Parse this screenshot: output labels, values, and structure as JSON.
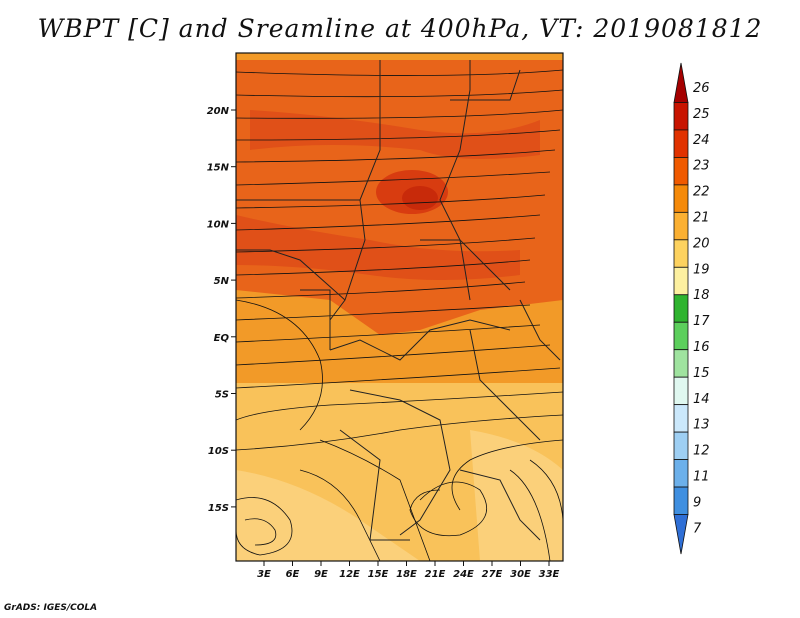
{
  "title": "WBPT [C] and Sreamline at 400hPa, VT: 2019081812",
  "credit": "GrADS: IGES/COLA",
  "map": {
    "lon_labels": [
      "3E",
      "6E",
      "9E",
      "12E",
      "15E",
      "18E",
      "21E",
      "24E",
      "27E",
      "30E",
      "33E"
    ],
    "lat_labels": [
      "20N",
      "15N",
      "10N",
      "5N",
      "EQ",
      "5S",
      "10S",
      "15S"
    ]
  },
  "colorbar": {
    "labels": [
      "26",
      "25",
      "24",
      "23",
      "22",
      "21",
      "20",
      "19",
      "18",
      "17",
      "16",
      "15",
      "14",
      "13",
      "12",
      "11",
      "9",
      "7"
    ],
    "colors": [
      "#a50000",
      "#c81400",
      "#e13200",
      "#f05a00",
      "#f58a0a",
      "#fbb032",
      "#fdd25f",
      "#fdf0a0",
      "#2fb42f",
      "#5ccf5c",
      "#9fe39f",
      "#e0f8f0",
      "#cbe8fb",
      "#9ecff3",
      "#6cb0ea",
      "#3f8fe0",
      "#2f6fd6"
    ]
  },
  "colors": {
    "field_north": "#e8641a",
    "field_core": "#d83c10",
    "field_mid": "#f29a28",
    "field_south": "#f9c25a"
  }
}
